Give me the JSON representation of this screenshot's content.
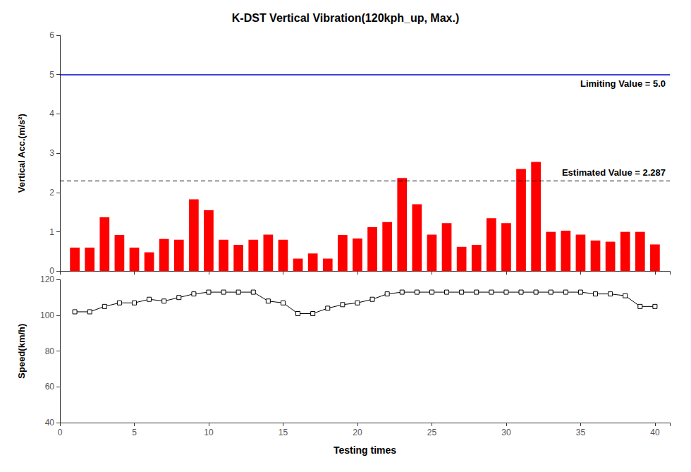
{
  "chart_data": [
    {
      "type": "bar",
      "title": "K-DST Vertical Vibration(120kph_up, Max.)",
      "ylabel": "Vertical Acc.(m/s²)",
      "x": [
        1,
        2,
        3,
        4,
        5,
        6,
        7,
        8,
        9,
        10,
        11,
        12,
        13,
        14,
        15,
        16,
        17,
        18,
        19,
        20,
        21,
        22,
        23,
        24,
        25,
        26,
        27,
        28,
        29,
        30,
        31,
        32,
        33,
        34,
        35,
        36,
        37,
        38,
        39,
        40
      ],
      "values": [
        0.6,
        0.6,
        1.37,
        0.92,
        0.6,
        0.48,
        0.82,
        0.8,
        1.83,
        1.55,
        0.8,
        0.67,
        0.8,
        0.93,
        0.8,
        0.32,
        0.45,
        0.32,
        0.92,
        0.83,
        1.12,
        1.25,
        2.37,
        1.7,
        0.93,
        1.22,
        0.62,
        0.67,
        1.35,
        1.22,
        2.6,
        2.78,
        1.0,
        1.03,
        0.93,
        0.78,
        0.75,
        1.0,
        1.0,
        0.68
      ],
      "color": "#FF0000",
      "lines": [
        {
          "value": 5.0,
          "color": "#0000CD",
          "line_style": "solid",
          "label": "Limiting Value = 5.0"
        },
        {
          "value": 2.287,
          "color": "#000000",
          "line_style": "dashed",
          "label": "Estimated Value = 2.287"
        }
      ],
      "xlim": [
        0,
        41
      ],
      "xticks": [
        0,
        5,
        10,
        15,
        20,
        25,
        30,
        35,
        40
      ],
      "ylim": [
        0,
        6
      ],
      "yticks": [
        0,
        1,
        2,
        3,
        4,
        5,
        6
      ],
      "tick_labels": "y",
      "grid": false
    },
    {
      "type": "line",
      "xlabel": "Testing times",
      "ylabel": "Speed(km/h)",
      "x": [
        1,
        2,
        3,
        4,
        5,
        6,
        7,
        8,
        9,
        10,
        11,
        12,
        13,
        14,
        15,
        16,
        17,
        18,
        19,
        20,
        21,
        22,
        23,
        24,
        25,
        26,
        27,
        28,
        29,
        30,
        31,
        32,
        33,
        34,
        35,
        36,
        37,
        38,
        39,
        40
      ],
      "values": [
        102,
        102,
        105,
        107,
        107,
        109,
        108,
        110,
        112,
        113,
        113,
        113,
        113,
        108,
        107,
        101,
        101,
        104,
        106,
        107,
        109,
        112,
        113,
        113,
        113,
        113,
        113,
        113,
        113,
        113,
        113,
        113,
        113,
        113,
        113,
        112,
        112,
        111,
        105,
        105
      ],
      "color": "#000000",
      "marker": "square",
      "xlim": [
        0,
        41
      ],
      "xticks": [
        0,
        5,
        10,
        15,
        20,
        25,
        30,
        35,
        40
      ],
      "ylim": [
        40,
        120
      ],
      "yticks": [
        40,
        60,
        80,
        100,
        120
      ],
      "grid": false
    }
  ]
}
